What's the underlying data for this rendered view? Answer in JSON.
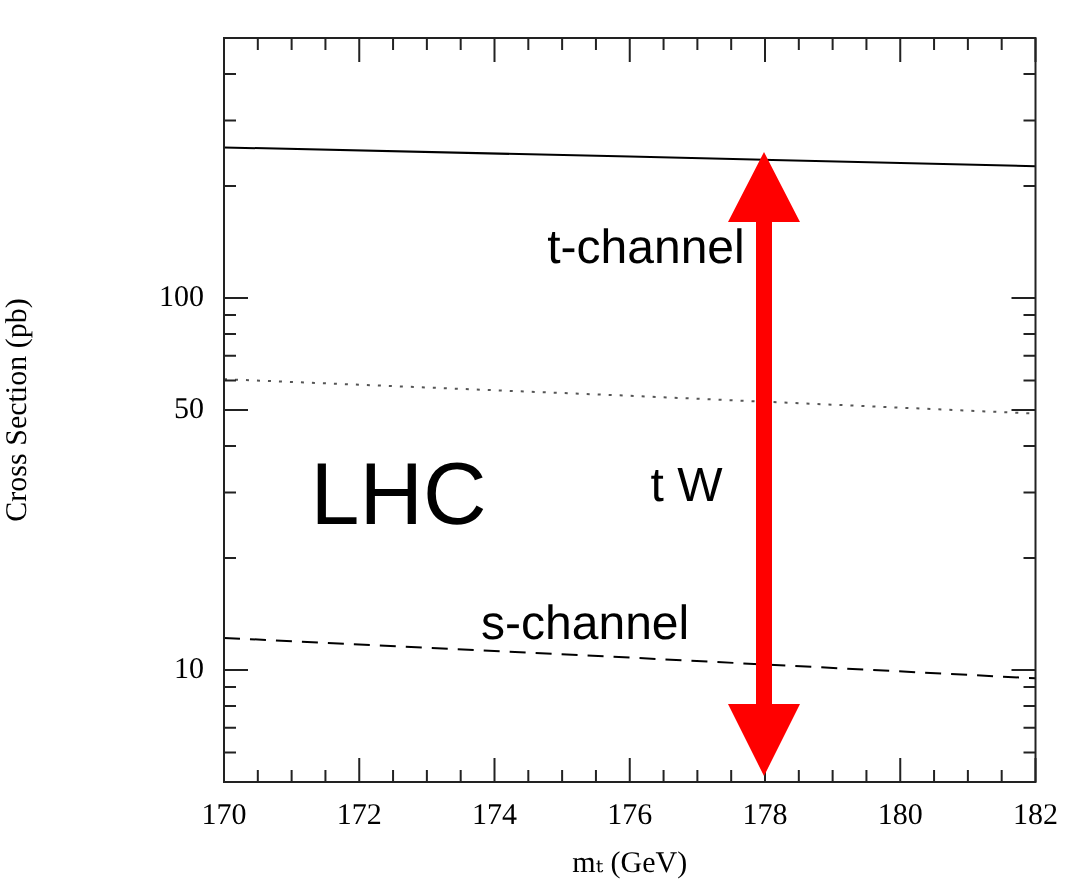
{
  "chart_data": {
    "type": "line",
    "xlabel": "mₜ (GeV)",
    "ylabel": "Cross Section (pb)",
    "x": [
      170,
      176,
      182
    ],
    "series": [
      {
        "color": "#000000",
        "values": [
          254,
          240,
          226
        ],
        "line_style": "solid"
      },
      {
        "color": "#555555",
        "values": [
          60.5,
          54.6,
          48.9
        ],
        "line_style": "dotted"
      },
      {
        "color": "#000000",
        "values": [
          12.2,
          10.8,
          9.5
        ],
        "line_style": "dashed"
      }
    ],
    "log": "y",
    "xlim": [
      170,
      182
    ],
    "ylim": [
      5,
      500
    ],
    "xticks": [
      170,
      {
        "value": 170.5,
        "label": null
      },
      {
        "value": 171,
        "label": null
      },
      {
        "value": 171.5,
        "label": null
      },
      172,
      {
        "value": 172.5,
        "label": null
      },
      {
        "value": 173,
        "label": null
      },
      {
        "value": 173.5,
        "label": null
      },
      174,
      {
        "value": 174.5,
        "label": null
      },
      {
        "value": 175,
        "label": null
      },
      {
        "value": 175.5,
        "label": null
      },
      176,
      {
        "value": 176.5,
        "label": null
      },
      {
        "value": 177,
        "label": null
      },
      {
        "value": 177.5,
        "label": null
      },
      178,
      {
        "value": 178.5,
        "label": null
      },
      {
        "value": 179,
        "label": null
      },
      {
        "value": 179.5,
        "label": null
      },
      180,
      {
        "value": 180.5,
        "label": null
      },
      {
        "value": 181,
        "label": null
      },
      {
        "value": 181.5,
        "label": null
      },
      182
    ],
    "yticks": [
      {
        "value": 6,
        "label": null
      },
      {
        "value": 7,
        "label": null
      },
      {
        "value": 8,
        "label": null
      },
      {
        "value": 9,
        "label": null
      },
      10,
      {
        "value": 20,
        "label": null
      },
      {
        "value": 30,
        "label": null
      },
      {
        "value": 40,
        "label": null
      },
      50,
      {
        "value": 60,
        "label": null
      },
      {
        "value": 70,
        "label": null
      },
      {
        "value": 80,
        "label": null
      },
      {
        "value": 90,
        "label": null
      },
      100,
      {
        "value": 200,
        "label": null
      },
      {
        "value": 300,
        "label": null
      },
      {
        "value": 400,
        "label": null
      }
    ],
    "annotations": [
      "LHC",
      "t-channel",
      "t W",
      "s-channel"
    ],
    "grid": false,
    "legend": false,
    "marker": "none"
  }
}
